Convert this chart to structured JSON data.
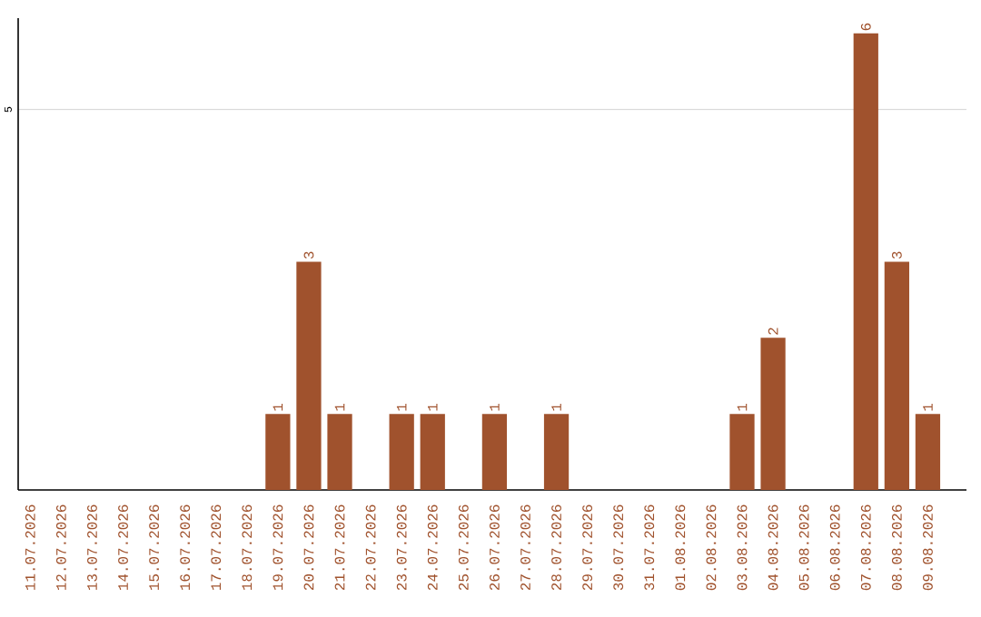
{
  "chart_data": {
    "type": "bar",
    "categories": [
      "11.07.2026",
      "12.07.2026",
      "13.07.2026",
      "14.07.2026",
      "15.07.2026",
      "16.07.2026",
      "17.07.2026",
      "18.07.2026",
      "19.07.2026",
      "20.07.2026",
      "21.07.2026",
      "22.07.2026",
      "23.07.2026",
      "24.07.2026",
      "25.07.2026",
      "26.07.2026",
      "27.07.2026",
      "28.07.2026",
      "29.07.2026",
      "30.07.2026",
      "31.07.2026",
      "01.08.2026",
      "02.08.2026",
      "03.08.2026",
      "04.08.2026",
      "05.08.2026",
      "06.08.2026",
      "07.08.2026",
      "08.08.2026",
      "09.08.2026"
    ],
    "values": [
      0,
      0,
      0,
      0,
      0,
      0,
      0,
      0,
      1,
      3,
      1,
      0,
      1,
      1,
      0,
      1,
      0,
      1,
      0,
      0,
      0,
      0,
      0,
      1,
      2,
      0,
      0,
      6,
      3,
      1
    ],
    "value_labels": [
      null,
      null,
      null,
      null,
      null,
      null,
      null,
      null,
      "1",
      "3",
      "1",
      null,
      "1",
      "1",
      null,
      "1",
      null,
      "1",
      null,
      null,
      null,
      null,
      null,
      "1",
      "2",
      null,
      null,
      "6",
      "3",
      "1"
    ],
    "color": "#a0522d",
    "ylim": [
      0,
      6.2
    ],
    "yticks": [
      5
    ],
    "grid": "y"
  }
}
